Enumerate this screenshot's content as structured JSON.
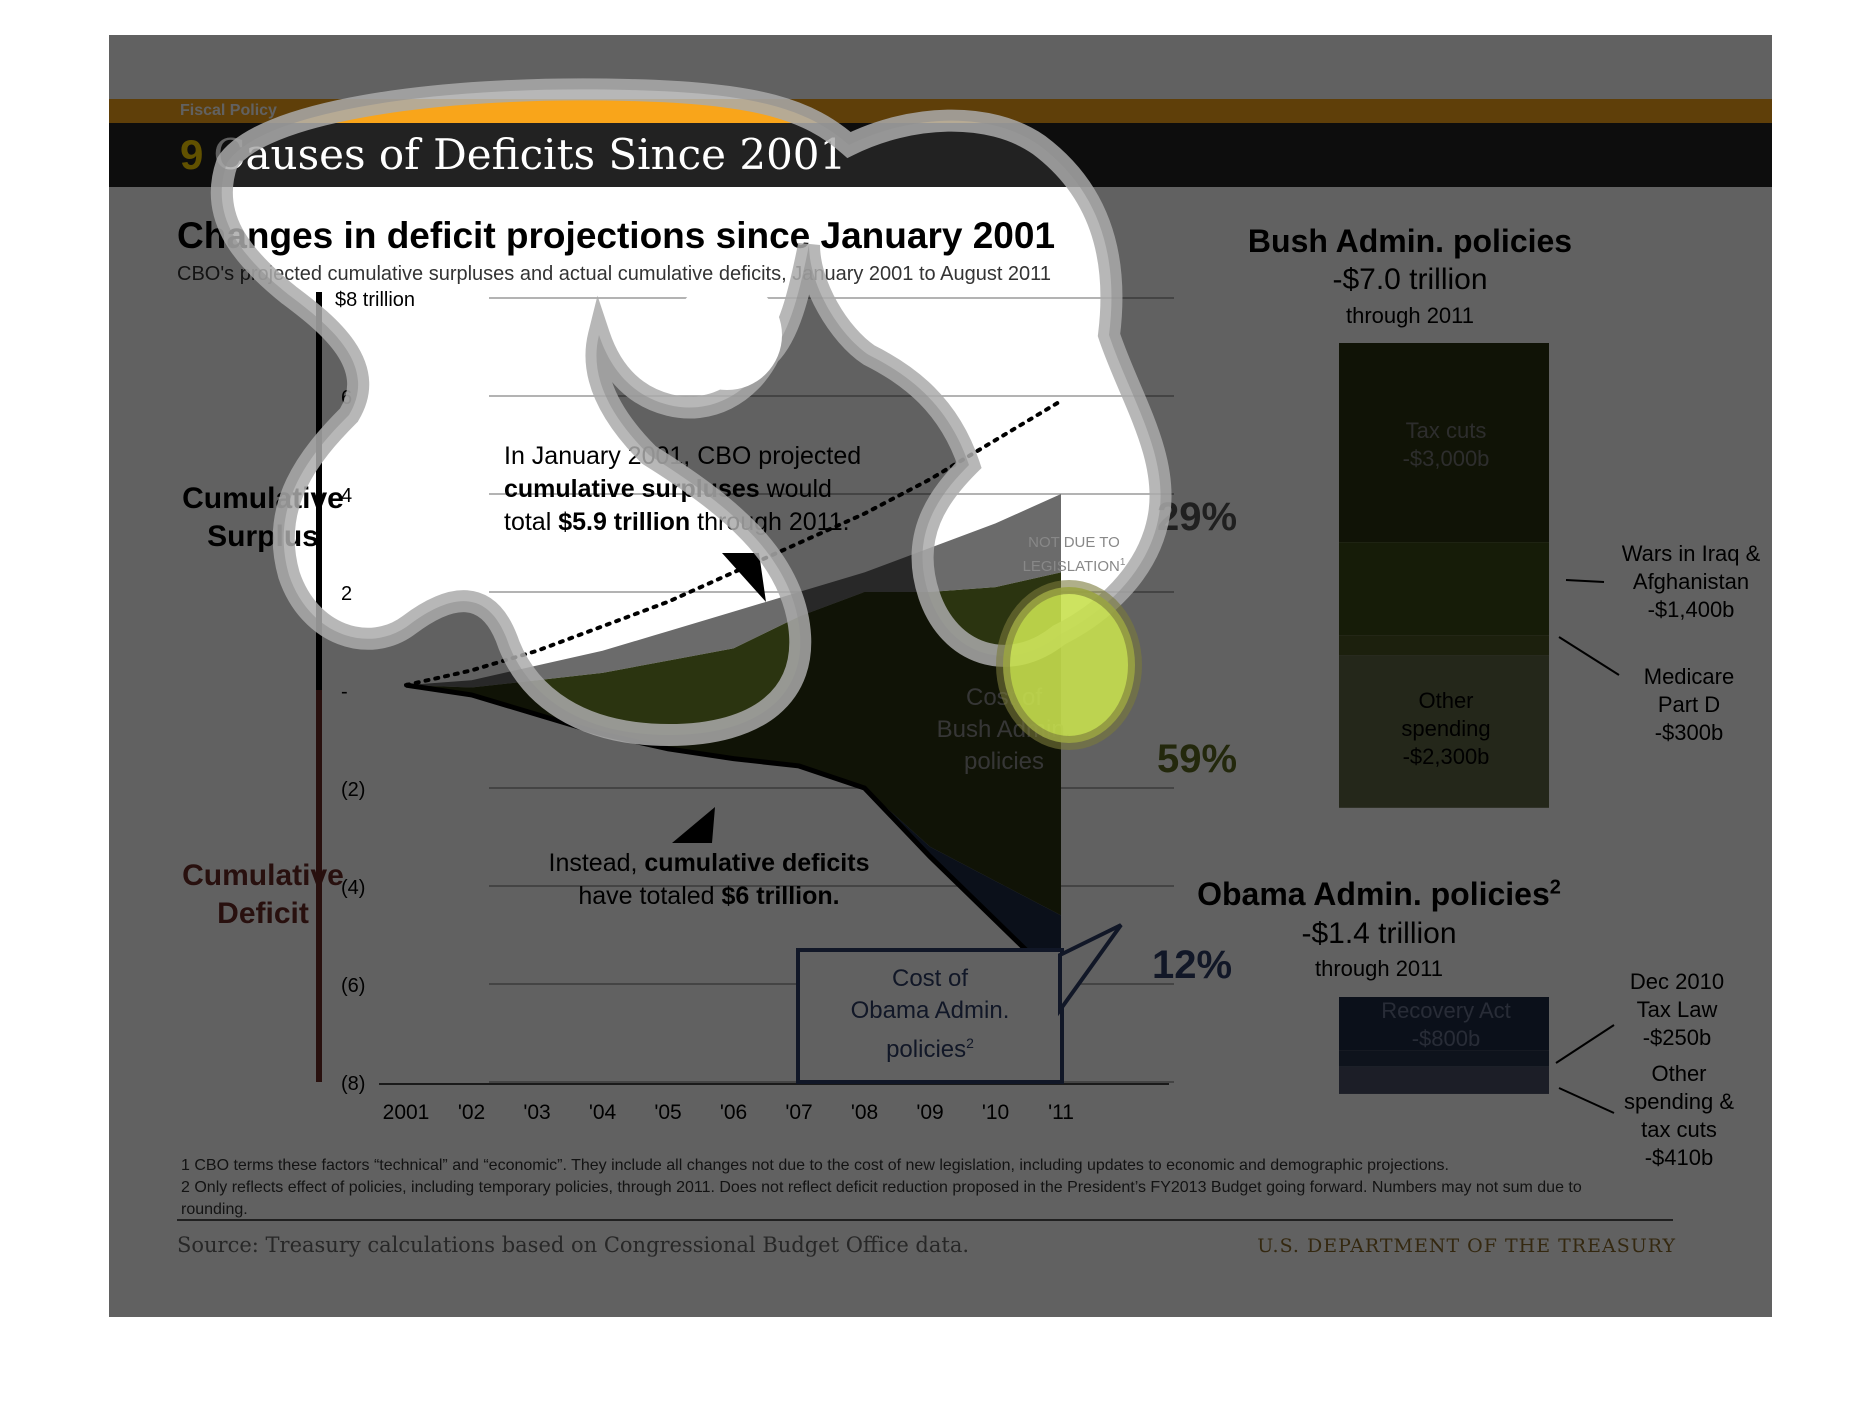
{
  "header": {
    "section": "Fiscal Policy",
    "number": "9",
    "title": "Causes of Deficits Since 2001"
  },
  "chart": {
    "title": "Changes in deficit projections since January 2001",
    "subtitle": "CBO's projected cumulative surpluses and actual cumulative deficits, January 2001 to August 2011",
    "surplus_label_line1": "Cumulative",
    "surplus_label_line2": "Surplus",
    "deficit_label_line1": "Cumulative",
    "deficit_label_line2": "Deficit",
    "annotation_surplus": {
      "line1": "In January 2001, CBO projected",
      "line2_bold": "cumulative surpluses",
      "line2_rest": " would",
      "line3_pre": "total ",
      "line3_bold": "$5.9 trillion",
      "line3_rest": " through 2011."
    },
    "annotation_deficit": {
      "line1_pre": "Instead, ",
      "line1_bold": "cumulative deficits",
      "line2_pre": "have totaled ",
      "line2_bold": "$6 trillion."
    },
    "not_due_label_line1": "NOT DUE TO",
    "not_due_label_line2": "LEGISLATION",
    "not_due_sup": "1",
    "bush_cost_line1": "Cost of",
    "bush_cost_line2": "Bush Admin.",
    "bush_cost_line3": "policies",
    "obama_cost_line1": "Cost of",
    "obama_cost_line2": "Obama Admin.",
    "obama_cost_line3": "policies",
    "obama_cost_sup": "2",
    "pct_not_due": "29%",
    "pct_bush": "59%",
    "pct_obama": "12%"
  },
  "chart_data": {
    "type": "area",
    "title": "Changes in deficit projections since January 2001",
    "x": [
      "2001",
      "'02",
      "'03",
      "'04",
      "'05",
      "'06",
      "'07",
      "'08",
      "'09",
      "'10",
      "'11"
    ],
    "ytick_labels": [
      "$8 trillion",
      "6",
      "4",
      "2",
      "-",
      "(2)",
      "(4)",
      "(6)",
      "(8)"
    ],
    "yticks": [
      8,
      6,
      4,
      2,
      0,
      -2,
      -4,
      -6,
      -8
    ],
    "ylim": [
      -8,
      8
    ],
    "series": [
      {
        "name": "CBO projected cumulative surplus",
        "values": [
          0.1,
          0.4,
          0.8,
          1.3,
          1.8,
          2.4,
          3.0,
          3.6,
          4.3,
          5.1,
          5.9
        ]
      },
      {
        "name": "Actual cumulative deficit",
        "values": [
          0.1,
          -0.1,
          -0.5,
          -0.9,
          -1.2,
          -1.4,
          -1.55,
          -2.0,
          -3.4,
          -4.7,
          -6.0
        ]
      },
      {
        "name": "Not due to legislation (upper edge)",
        "values": [
          0.1,
          0.2,
          0.5,
          0.8,
          1.2,
          1.6,
          2.0,
          2.4,
          2.9,
          3.4,
          4.0
        ]
      },
      {
        "name": "Bush policies (upper edge)",
        "values": [
          0.1,
          0.05,
          0.2,
          0.35,
          0.6,
          0.85,
          1.5,
          2.0,
          2.0,
          2.1,
          2.4
        ]
      },
      {
        "name": "Bush policies (lower edge)",
        "values": [
          0.1,
          -0.1,
          -0.5,
          -0.9,
          -1.2,
          -1.4,
          -1.55,
          -2.0,
          -3.2,
          -3.9,
          -4.6
        ]
      }
    ],
    "grid": true
  },
  "bush_panel": {
    "title": "Bush Admin. policies",
    "amount": "-$7.0 trillion",
    "through": "through 2011",
    "segments": [
      {
        "line1": "Tax cuts",
        "line2": "-$3,000b",
        "value": 3000,
        "color": "#2b3410"
      },
      {
        "line1": "Wars in Iraq  &",
        "line2": "Afghanistan",
        "line3": "-$1,400b",
        "value": 1400,
        "color": "#3c4a16"
      },
      {
        "line1": "Medicare",
        "line2": "Part D",
        "line3": "-$300b",
        "value": 300,
        "color": "#4a5524"
      },
      {
        "line1": "Other",
        "line2": "spending",
        "line3": "-$2,300b",
        "value": 2300,
        "color": "#5f6645"
      }
    ]
  },
  "obama_panel": {
    "title": "Obama Admin. policies",
    "sup": "2",
    "amount": "-$1.4 trillion",
    "through": "through 2011",
    "segments": [
      {
        "line1": "Recovery Act",
        "line2": "-$800b",
        "value": 800,
        "color": "#1f2b44"
      },
      {
        "line1": "Dec 2010",
        "line2": "Tax Law",
        "line3": "-$250b",
        "value": 250,
        "color": "#26324b"
      },
      {
        "line1": "Other",
        "line2": "spending &",
        "line3": "tax cuts",
        "line4": "-$410b",
        "value": 410,
        "color": "#4a5066"
      }
    ]
  },
  "footnotes": {
    "note1": "1 CBO terms these factors “technical” and “economic”. They include all changes not due to the cost of new legislation, including updates to economic and demographic projections.",
    "note2": "2 Only reflects effect of policies, including temporary policies, through 2011. Does not reflect deficit reduction proposed in the President’s FY2013 Budget going forward. Numbers may not sum due to rounding."
  },
  "source": "Source: Treasury calculations based on Congressional Budget Office data.",
  "department": "U.S. DEPARTMENT OF THE TREASURY",
  "colors": {
    "accent_orange": "#f9a51a",
    "title_bar": "#222222",
    "bush_green": "#2b3410",
    "obama_navy": "#1f2b44",
    "pct_grey": "#555555",
    "pct_green": "#5d6b21",
    "pct_navy": "#2e3d66",
    "deficit_red": "#6b2a27"
  }
}
